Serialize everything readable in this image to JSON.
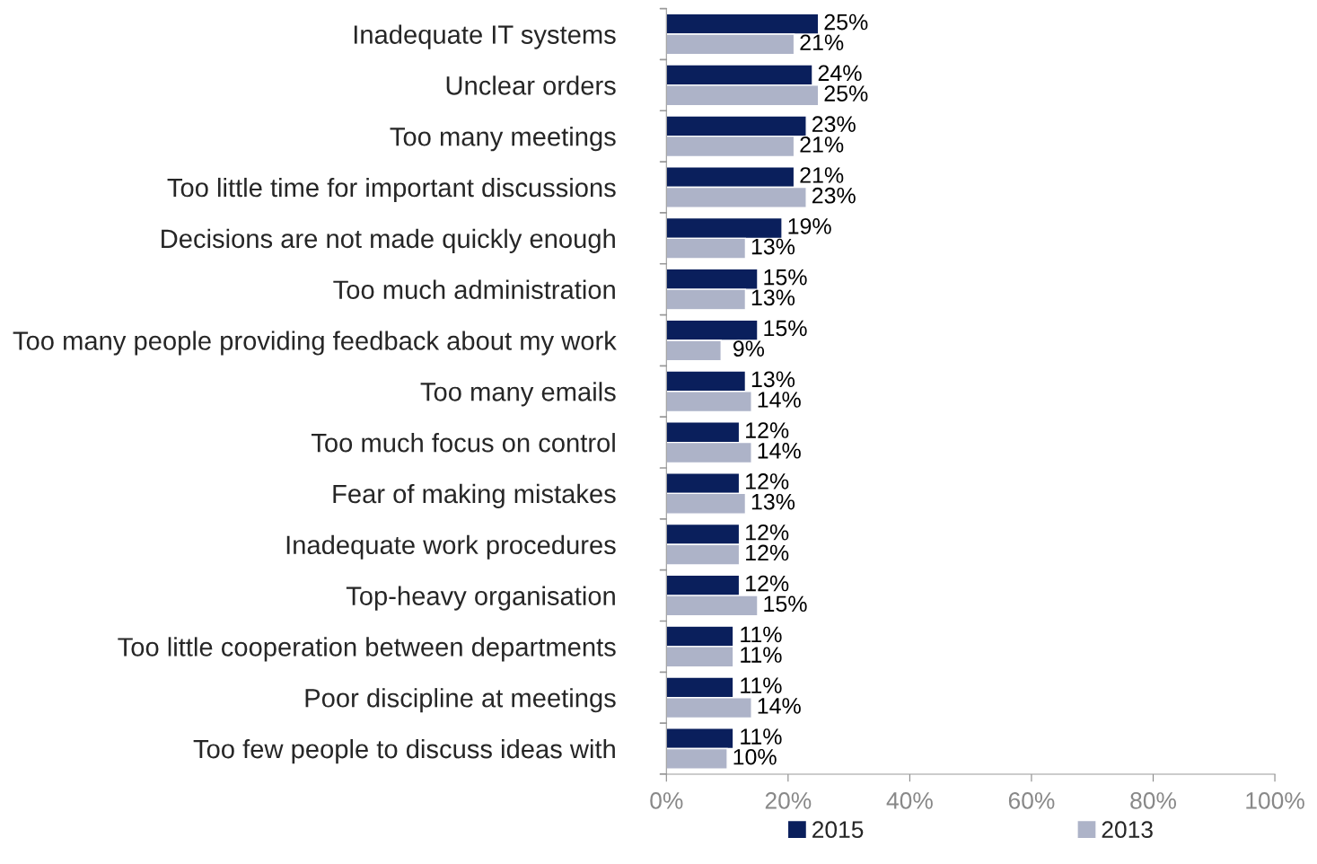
{
  "chart_data": {
    "type": "bar",
    "orientation": "horizontal",
    "categories": [
      "Inadequate IT systems",
      "Unclear orders",
      "Too many meetings",
      "Too little time for important discussions",
      "Decisions are not made quickly enough",
      "Too much administration",
      "Too many people providing feedback about my work",
      "Too many emails",
      "Too much focus on control",
      "Fear of making mistakes",
      "Inadequate work procedures",
      "Top-heavy organisation",
      "Too little cooperation between departments",
      "Poor discipline at meetings",
      "Too few people to discuss ideas with"
    ],
    "series": [
      {
        "name": "2015",
        "color": "#0a1f5c",
        "values": [
          25,
          24,
          23,
          21,
          19,
          15,
          15,
          13,
          12,
          12,
          12,
          12,
          11,
          11,
          11
        ],
        "value_labels": [
          "25%",
          "24%",
          "23%",
          "21%",
          "19%",
          "15%",
          "15%",
          "13%",
          "12%",
          "12%",
          "12%",
          "12%",
          "11%",
          "11%",
          "11%"
        ]
      },
      {
        "name": "2013",
        "color": "#adb3c8",
        "values": [
          21,
          25,
          21,
          23,
          13,
          13,
          9,
          14,
          14,
          13,
          12,
          15,
          11,
          14,
          10
        ],
        "value_labels": [
          "21%",
          "25%",
          "21%",
          "23%",
          "13%",
          "13%",
          "9%",
          "14%",
          "14%",
          "13%",
          "12%",
          "15%",
          "11%",
          "14%",
          "10%"
        ]
      }
    ],
    "xlim": [
      0,
      100
    ],
    "xticks": [
      {
        "value": 0,
        "label": "0%"
      },
      {
        "value": 20,
        "label": "20%"
      },
      {
        "value": 40,
        "label": "40%"
      },
      {
        "value": 60,
        "label": "60%"
      },
      {
        "value": 80,
        "label": "80%"
      },
      {
        "value": 100,
        "label": "100%"
      }
    ],
    "legend": "bottom",
    "grid": false
  }
}
